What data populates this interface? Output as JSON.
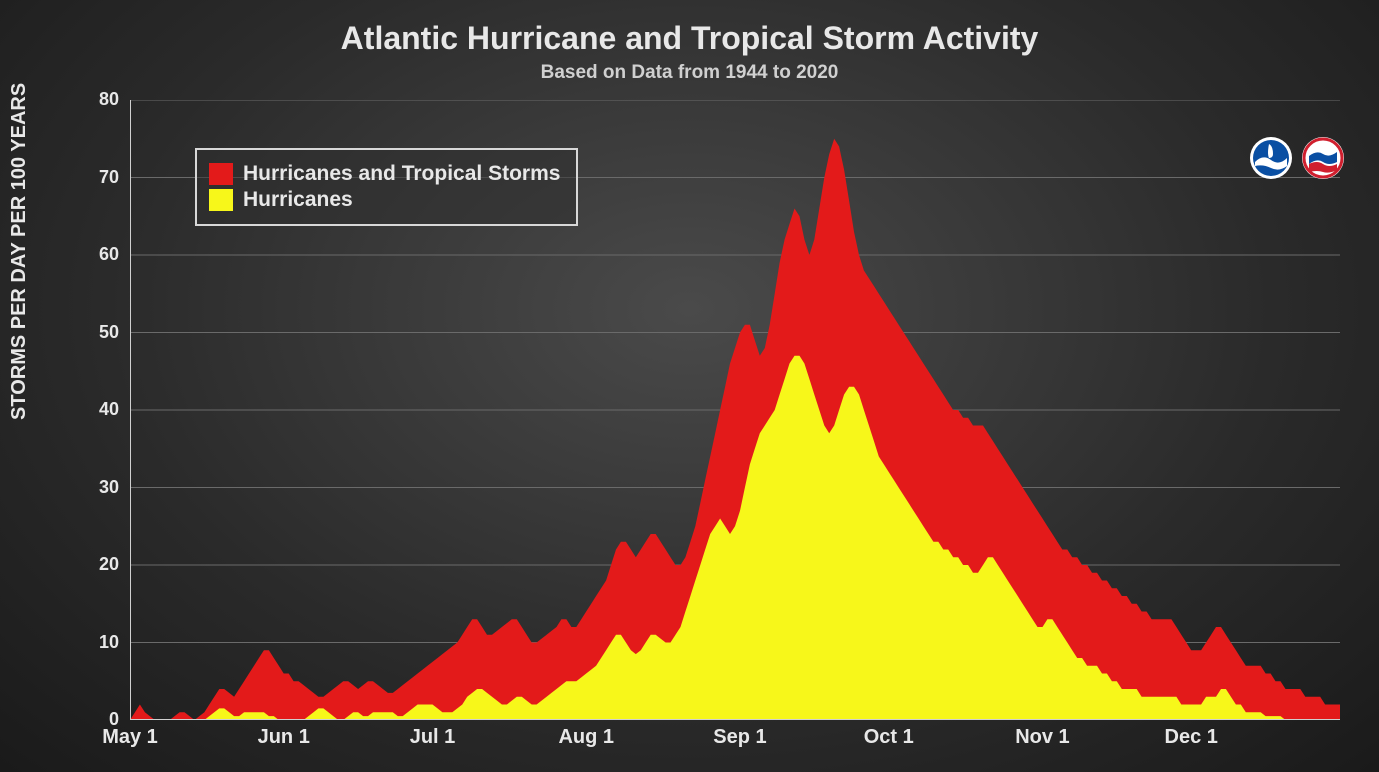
{
  "chart": {
    "type": "area",
    "title": "Atlantic Hurricane and Tropical Storm Activity",
    "subtitle": "Based on Data from 1944 to 2020",
    "ylabel": "STORMS PER DAY PER 100 YEARS",
    "title_fontsize": 32,
    "subtitle_fontsize": 19,
    "ylabel_fontsize": 20,
    "tick_fontsize": 18,
    "background": "radial-gradient #4a4a4a -> #1a1a1a",
    "grid_color": "#6a6a6a",
    "axis_color": "#d0d0d0",
    "text_color": "#e8e8e8",
    "ylim": [
      0,
      80
    ],
    "ytick_step": 10,
    "y_ticks": [
      0,
      10,
      20,
      30,
      40,
      50,
      60,
      70,
      80
    ],
    "x_start_dayofyear": 121,
    "x_end_dayofyear": 365,
    "x_tick_labels": [
      "May 1",
      "Jun 1",
      "Jul 1",
      "Aug 1",
      "Sep 1",
      "Oct 1",
      "Nov 1",
      "Dec 1"
    ],
    "x_tick_days": [
      121,
      152,
      182,
      213,
      244,
      274,
      305,
      335
    ],
    "minor_tick_interval_days": 1,
    "series": [
      {
        "name": "Hurricanes and Tropical Storms",
        "color": "#e31a1a",
        "legend_label": "Hurricanes and Tropical Storms",
        "values_by_day": [
          0,
          1,
          2,
          1,
          0.5,
          0,
          0,
          0,
          0,
          0.5,
          1,
          1,
          0.5,
          0,
          0.5,
          1,
          2,
          3,
          4,
          4,
          3.5,
          3,
          4,
          5,
          6,
          7,
          8,
          9,
          9,
          8,
          7,
          6,
          6,
          5,
          5,
          4.5,
          4,
          3.5,
          3,
          3,
          3.5,
          4,
          4.5,
          5,
          5,
          4.5,
          4,
          4.5,
          5,
          5,
          4.5,
          4,
          3.5,
          3.5,
          4,
          4.5,
          5,
          5.5,
          6,
          6.5,
          7,
          7.5,
          8,
          8.5,
          9,
          9.5,
          10,
          11,
          12,
          13,
          13,
          12,
          11,
          11,
          11.5,
          12,
          12.5,
          13,
          13,
          12,
          11,
          10,
          10,
          10.5,
          11,
          11.5,
          12,
          13,
          13,
          12,
          12,
          13,
          14,
          15,
          16,
          17,
          18,
          20,
          22,
          23,
          23,
          22,
          21,
          22,
          23,
          24,
          24,
          23,
          22,
          21,
          20,
          20,
          21,
          23,
          25,
          28,
          31,
          34,
          37,
          40,
          43,
          46,
          48,
          50,
          51,
          51,
          49,
          47,
          48,
          51,
          55,
          59,
          62,
          64,
          66,
          65,
          62,
          60,
          62,
          66,
          70,
          73,
          75,
          74,
          71,
          67,
          63,
          60,
          58,
          57,
          56,
          55,
          54,
          53,
          52,
          51,
          50,
          49,
          48,
          47,
          46,
          45,
          44,
          43,
          42,
          41,
          40,
          40,
          39,
          39,
          38,
          38,
          38,
          37,
          36,
          35,
          34,
          33,
          32,
          31,
          30,
          29,
          28,
          27,
          26,
          25,
          24,
          23,
          22,
          22,
          21,
          21,
          20,
          20,
          19,
          19,
          18,
          18,
          17,
          17,
          16,
          16,
          15,
          15,
          14,
          14,
          13,
          13,
          13,
          13,
          13,
          12,
          11,
          10,
          9,
          9,
          9,
          10,
          11,
          12,
          12,
          11,
          10,
          9,
          8,
          7,
          7,
          7,
          7,
          6,
          6,
          5,
          5,
          4,
          4,
          4,
          4,
          3,
          3,
          3,
          3,
          2,
          2,
          2,
          2,
          2,
          1,
          1,
          1,
          1,
          1,
          1,
          1,
          1,
          1,
          2,
          2
        ]
      },
      {
        "name": "Hurricanes",
        "color": "#f7f71a",
        "legend_label": "Hurricanes",
        "values_by_day": [
          0,
          0,
          0,
          0,
          0,
          0,
          0,
          0,
          0,
          0,
          0,
          0,
          0,
          0,
          0,
          0,
          0.5,
          1,
          1.5,
          1.5,
          1,
          0.5,
          0.5,
          1,
          1,
          1,
          1,
          1,
          0.5,
          0.5,
          0,
          0,
          0,
          0,
          0,
          0,
          0.5,
          1,
          1.5,
          1.5,
          1,
          0.5,
          0,
          0,
          0.5,
          1,
          1,
          0.5,
          0.5,
          1,
          1,
          1,
          1,
          1,
          0.5,
          0.5,
          1,
          1.5,
          2,
          2,
          2,
          2,
          1.5,
          1,
          1,
          1,
          1.5,
          2,
          3,
          3.5,
          4,
          4,
          3.5,
          3,
          2.5,
          2,
          2,
          2.5,
          3,
          3,
          2.5,
          2,
          2,
          2.5,
          3,
          3.5,
          4,
          4.5,
          5,
          5,
          5,
          5.5,
          6,
          6.5,
          7,
          8,
          9,
          10,
          11,
          11,
          10,
          9,
          8.5,
          9,
          10,
          11,
          11,
          10.5,
          10,
          10,
          11,
          12,
          14,
          16,
          18,
          20,
          22,
          24,
          25,
          26,
          25,
          24,
          25,
          27,
          30,
          33,
          35,
          37,
          38,
          39,
          40,
          42,
          44,
          46,
          47,
          47,
          46,
          44,
          42,
          40,
          38,
          37,
          38,
          40,
          42,
          43,
          43,
          42,
          40,
          38,
          36,
          34,
          33,
          32,
          31,
          30,
          29,
          28,
          27,
          26,
          25,
          24,
          23,
          23,
          22,
          22,
          21,
          21,
          20,
          20,
          19,
          19,
          20,
          21,
          21,
          20,
          19,
          18,
          17,
          16,
          15,
          14,
          13,
          12,
          12,
          13,
          13,
          12,
          11,
          10,
          9,
          8,
          8,
          7,
          7,
          7,
          6,
          6,
          5,
          5,
          4,
          4,
          4,
          4,
          3,
          3,
          3,
          3,
          3,
          3,
          3,
          3,
          2,
          2,
          2,
          2,
          2,
          3,
          3,
          3,
          4,
          4,
          3,
          2,
          2,
          1,
          1,
          1,
          1,
          0.5,
          0.5,
          0.5,
          0.5,
          0,
          0,
          0,
          0,
          0,
          0,
          0,
          0,
          0,
          0,
          0,
          0,
          0,
          0,
          0,
          0,
          0,
          0,
          0,
          0,
          0.5,
          1,
          1,
          0.5
        ]
      }
    ],
    "legend": {
      "border_color": "#d8d8d8",
      "background": "rgba(45,45,45,0.5)",
      "position": "top-left-inside"
    },
    "logos": [
      {
        "name": "noaa-logo",
        "colors": [
          "#0a4fa3",
          "#ffffff"
        ]
      },
      {
        "name": "nws-logo",
        "colors": [
          "#ffffff",
          "#d01f2e",
          "#0a4fa3"
        ]
      }
    ]
  }
}
